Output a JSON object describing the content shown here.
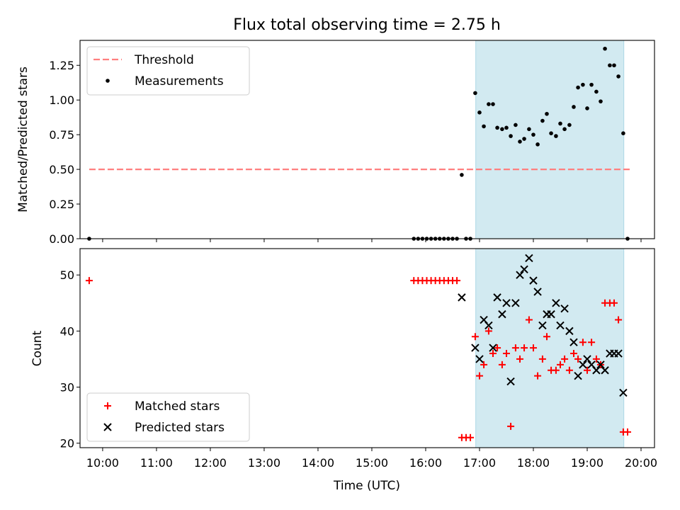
{
  "chart_data": [
    {
      "type": "scatter",
      "title": "Flux total observing time = 2.75 h",
      "xlabel": "",
      "ylabel": "Matched/Predicted stars",
      "ylim": [
        0,
        1.43
      ],
      "xlim": [
        9.58,
        20.25
      ],
      "yticks": [
        0.0,
        0.25,
        0.5,
        0.75,
        1.0,
        1.25
      ],
      "ytick_labels": [
        "0.00",
        "0.25",
        "0.50",
        "0.75",
        "1.00",
        "1.25"
      ],
      "shaded_region": {
        "x0": 16.93,
        "x1": 19.68,
        "color": "#add8e6"
      },
      "legend": {
        "position": "upper-left",
        "entries": [
          "Threshold",
          "Measurements"
        ]
      },
      "series": [
        {
          "name": "Threshold",
          "style": "dashed-line",
          "color": "#ff7f7f",
          "x": [
            9.75,
            19.8
          ],
          "y": [
            0.5,
            0.5
          ]
        },
        {
          "name": "Measurements",
          "style": "dot",
          "color": "#000000",
          "x": [
            9.75,
            15.78,
            15.86,
            15.94,
            16.02,
            16.1,
            16.18,
            16.26,
            16.34,
            16.42,
            16.5,
            16.58,
            16.67,
            16.75,
            16.83,
            16.92,
            17.0,
            17.08,
            17.17,
            17.25,
            17.33,
            17.42,
            17.5,
            17.58,
            17.67,
            17.75,
            17.83,
            17.92,
            18.0,
            18.08,
            18.17,
            18.25,
            18.33,
            18.42,
            18.5,
            18.58,
            18.67,
            18.75,
            18.83,
            18.92,
            19.0,
            19.08,
            19.17,
            19.25,
            19.33,
            19.42,
            19.5,
            19.58,
            19.67,
            19.75
          ],
          "y": [
            0.0,
            0.0,
            0.0,
            0.0,
            0.0,
            0.0,
            0.0,
            0.0,
            0.0,
            0.0,
            0.0,
            0.0,
            0.46,
            0.0,
            0.0,
            1.05,
            0.91,
            0.81,
            0.97,
            0.97,
            0.8,
            0.79,
            0.8,
            0.74,
            0.82,
            0.7,
            0.72,
            0.79,
            0.75,
            0.68,
            0.85,
            0.9,
            0.76,
            0.74,
            0.83,
            0.79,
            0.82,
            0.95,
            1.09,
            1.11,
            0.94,
            1.11,
            1.06,
            0.99,
            1.37,
            1.25,
            1.25,
            1.17,
            0.76,
            0.0
          ]
        }
      ]
    },
    {
      "type": "scatter",
      "title": "",
      "xlabel": "Time (UTC)",
      "ylabel": "Count",
      "ylim": [
        19.2,
        54.7
      ],
      "xlim": [
        9.58,
        20.25
      ],
      "yticks": [
        20,
        30,
        40,
        50
      ],
      "ytick_labels": [
        "20",
        "30",
        "40",
        "50"
      ],
      "xticks": [
        10,
        11,
        12,
        13,
        14,
        15,
        16,
        17,
        18,
        19,
        20
      ],
      "xtick_labels": [
        "10:00",
        "11:00",
        "12:00",
        "13:00",
        "14:00",
        "15:00",
        "16:00",
        "17:00",
        "18:00",
        "19:00",
        "20:00"
      ],
      "shaded_region": {
        "x0": 16.93,
        "x1": 19.68,
        "color": "#add8e6"
      },
      "legend": {
        "position": "lower-left",
        "entries": [
          "Matched stars",
          "Predicted stars"
        ]
      },
      "series": [
        {
          "name": "Matched stars",
          "style": "plus",
          "color": "#ff0000",
          "x": [
            9.75,
            15.78,
            15.86,
            15.94,
            16.02,
            16.1,
            16.18,
            16.26,
            16.34,
            16.42,
            16.5,
            16.58,
            16.67,
            16.75,
            16.83,
            16.92,
            17.0,
            17.08,
            17.17,
            17.25,
            17.33,
            17.42,
            17.5,
            17.58,
            17.67,
            17.75,
            17.83,
            17.92,
            18.0,
            18.08,
            18.17,
            18.25,
            18.33,
            18.42,
            18.5,
            18.58,
            18.67,
            18.75,
            18.83,
            18.92,
            19.0,
            19.08,
            19.17,
            19.25,
            19.33,
            19.42,
            19.5,
            19.58,
            19.67,
            19.75
          ],
          "y": [
            49,
            49,
            49,
            49,
            49,
            49,
            49,
            49,
            49,
            49,
            49,
            49,
            21,
            21,
            21,
            39,
            32,
            34,
            40,
            36,
            37,
            34,
            36,
            23,
            37,
            35,
            37,
            42,
            37,
            32,
            35,
            39,
            33,
            33,
            34,
            35,
            33,
            36,
            35,
            38,
            33,
            38,
            35,
            34,
            45,
            45,
            45,
            42,
            22,
            22
          ]
        },
        {
          "name": "Predicted stars",
          "style": "cross",
          "color": "#000000",
          "x": [
            16.67,
            16.92,
            17.0,
            17.08,
            17.17,
            17.25,
            17.33,
            17.42,
            17.5,
            17.58,
            17.67,
            17.75,
            17.83,
            17.92,
            18.0,
            18.08,
            18.17,
            18.25,
            18.33,
            18.42,
            18.5,
            18.58,
            18.67,
            18.75,
            18.83,
            18.92,
            19.0,
            19.08,
            19.17,
            19.25,
            19.33,
            19.42,
            19.5,
            19.58,
            19.67
          ],
          "y": [
            46,
            37,
            35,
            42,
            41,
            37,
            46,
            43,
            45,
            31,
            45,
            50,
            51,
            53,
            49,
            47,
            41,
            43,
            43,
            45,
            41,
            44,
            40,
            38,
            32,
            34,
            35,
            34,
            33,
            34,
            33,
            36,
            36,
            36,
            29
          ]
        }
      ]
    }
  ]
}
